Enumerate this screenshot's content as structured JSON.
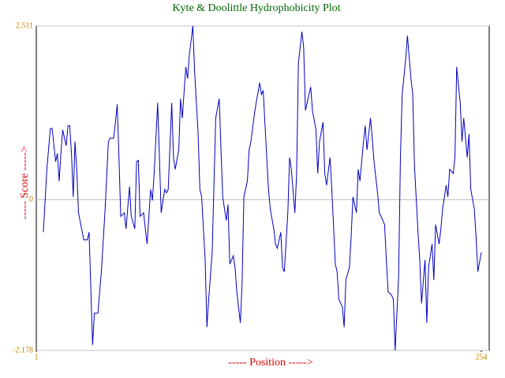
{
  "chart_data": {
    "type": "line",
    "title": "Kyte & Doolittle Hydrophobicity Plot",
    "xlabel": "----- Position ----->",
    "ylabel": "----- Score ----->",
    "xlim": [
      1,
      254
    ],
    "ylim": [
      -2.178,
      2.511
    ],
    "xticks": [
      1,
      254
    ],
    "yticks": [
      -2.178,
      0,
      2.511
    ],
    "grid": true,
    "x": [
      5,
      7,
      9,
      10,
      12,
      13,
      14,
      15,
      16,
      18,
      19,
      20,
      21,
      22,
      23,
      24,
      25,
      28,
      30,
      31,
      33,
      34,
      36,
      38,
      40,
      42,
      43,
      45,
      46,
      47,
      48,
      49,
      51,
      52,
      54,
      55,
      57,
      58,
      59,
      60,
      62,
      63,
      64,
      66,
      67,
      68,
      70,
      71,
      72,
      74,
      75,
      76,
      78,
      79,
      80,
      82,
      83,
      84,
      86,
      87,
      88,
      90,
      91,
      93,
      94,
      95,
      97,
      98,
      99,
      101,
      102,
      103,
      105,
      106,
      107,
      109,
      110,
      111,
      113,
      114,
      115,
      117,
      118,
      119,
      121,
      122,
      123,
      125,
      126,
      128,
      129,
      130,
      132,
      133,
      134,
      136,
      137,
      138,
      140,
      141,
      142,
      144,
      145,
      146,
      148,
      149,
      150,
      152,
      153,
      154,
      156,
      157,
      158,
      160,
      161,
      162,
      164,
      165,
      166,
      168,
      169,
      171,
      172,
      173,
      175,
      176,
      177,
      179,
      180,
      181,
      183,
      184,
      185,
      187,
      188,
      189,
      191,
      192,
      193,
      195,
      196,
      197,
      199,
      200,
      201,
      203,
      204,
      205,
      207,
      208,
      209,
      211,
      212,
      214,
      215,
      216,
      218,
      219,
      220,
      222,
      223,
      224,
      226,
      227,
      228,
      230,
      231,
      232,
      234,
      235,
      236,
      238,
      239,
      240,
      242,
      243,
      244,
      246,
      247,
      248,
      250,
      251,
      252,
      254
    ],
    "series": [
      {
        "name": "Score",
        "color": "#0000c0",
        "values": [
          -0.47,
          0.44,
          1.03,
          1.03,
          0.55,
          0.67,
          0.27,
          0.67,
          1.01,
          0.78,
          1.07,
          1.07,
          0.67,
          0.04,
          0.84,
          0.44,
          -0.19,
          -0.58,
          -0.58,
          -0.47,
          -2.1,
          -1.64,
          -1.64,
          -1.04,
          -0.19,
          0.84,
          0.89,
          0.89,
          1.12,
          1.38,
          0.61,
          -0.24,
          -0.19,
          -0.42,
          0.19,
          -0.24,
          -0.42,
          0.55,
          0.57,
          -0.24,
          -0.19,
          -0.42,
          -0.64,
          0.15,
          -0.01,
          0.38,
          1.4,
          0.61,
          -0.19,
          0.15,
          0.1,
          0.15,
          1.4,
          0.61,
          0.44,
          0.72,
          1.46,
          1.18,
          1.92,
          1.75,
          2.09,
          2.511,
          1.86,
          0.95,
          0.15,
          0.04,
          -0.87,
          -1.84,
          -1.44,
          -0.76,
          0.21,
          1.18,
          1.46,
          0.72,
          0.04,
          -0.3,
          -0.07,
          -0.93,
          -0.81,
          -0.98,
          -1.33,
          -1.78,
          -1.21,
          0.04,
          0.27,
          0.72,
          0.84,
          1.24,
          1.4,
          1.69,
          1.52,
          1.58,
          0.61,
          0.15,
          -0.13,
          -0.42,
          -0.64,
          -0.7,
          -0.47,
          -0.98,
          -1.04,
          -0.19,
          0.61,
          0.44,
          -0.19,
          0.38,
          1.97,
          2.43,
          2.2,
          1.29,
          1.52,
          1.63,
          1.29,
          1.01,
          0.38,
          0.84,
          1.12,
          0.38,
          0.21,
          0.61,
          0.15,
          -0.93,
          -1.04,
          -1.44,
          -1.55,
          -1.84,
          -1.16,
          -0.98,
          -0.53,
          0.04,
          -0.19,
          0.44,
          0.27,
          0.84,
          1.07,
          0.72,
          1.18,
          0.89,
          0.55,
          0.1,
          -0.19,
          -0.24,
          -0.36,
          -0.87,
          -1.33,
          -1.38,
          -1.44,
          -2.178,
          -1.1,
          0.61,
          1.52,
          2.03,
          2.37,
          1.75,
          1.52,
          0.49,
          -0.47,
          -0.87,
          -1.5,
          -0.87,
          -1.78,
          -0.98,
          -0.64,
          -1.16,
          -0.36,
          -0.64,
          -0.42,
          -0.13,
          0.21,
          0.04,
          0.44,
          0.38,
          0.61,
          1.92,
          1.4,
          0.84,
          1.18,
          0.61,
          0.95,
          0.15,
          -0.13,
          -0.53,
          -1.04,
          -0.76
        ]
      }
    ]
  }
}
